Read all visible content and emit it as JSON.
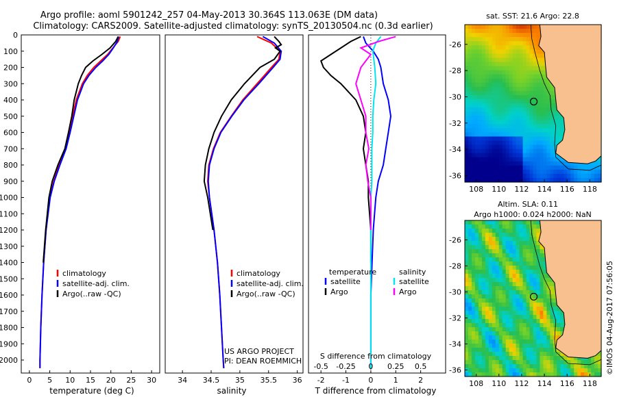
{
  "title": {
    "line1": "Argo profile: aoml 5901242_257 04-May-2013 30.364S 113.063E (DM data)",
    "line2": "Climatology: CARS2009. Satellite-adjusted climatology: synTS_20130504.nc (0.3d earlier)"
  },
  "colors": {
    "climatology": "#ff0000",
    "satellite": "#0000ff",
    "argo": "#000000",
    "sat_s": "#00e5ee",
    "argo_s": "#ff00ff",
    "land": "#f8c08f"
  },
  "chart_data": [
    {
      "type": "line",
      "name": "temperature-profile",
      "xlabel": "temperature (deg C)",
      "xlim": [
        -2,
        32
      ],
      "ylim": [
        2080,
        0
      ],
      "xticks": [
        0,
        5,
        10,
        15,
        20,
        25,
        30
      ],
      "yticks": [
        0,
        100,
        200,
        300,
        400,
        500,
        600,
        700,
        800,
        900,
        1000,
        1100,
        1200,
        1300,
        1400,
        1500,
        1600,
        1700,
        1800,
        1900,
        2000
      ],
      "legend": [
        "climatology",
        "satellite-adj. clim.",
        "Argo(..raw -QC)"
      ],
      "series": [
        {
          "name": "climatology",
          "depth": [
            10,
            40,
            80,
            120,
            160,
            200,
            250,
            300,
            400,
            500,
            600,
            700,
            800,
            900,
            1000,
            1200,
            1400,
            1600,
            1800,
            2000,
            2050
          ],
          "values": [
            22.3,
            21.8,
            20.5,
            19.2,
            17.5,
            15.8,
            14.2,
            13.0,
            11.5,
            10.6,
            9.8,
            8.8,
            7.3,
            6.0,
            5.0,
            4.1,
            3.5,
            3.1,
            2.8,
            2.6,
            2.6
          ]
        },
        {
          "name": "satellite-adj. clim.",
          "depth": [
            10,
            40,
            80,
            120,
            160,
            200,
            250,
            300,
            400,
            500,
            600,
            700,
            800,
            900,
            1000,
            1200,
            1400,
            1600,
            1800,
            2000,
            2050
          ],
          "values": [
            21.9,
            21.6,
            20.6,
            19.5,
            18.0,
            16.3,
            14.6,
            13.3,
            11.8,
            10.9,
            10.0,
            9.0,
            7.5,
            6.1,
            5.1,
            4.1,
            3.5,
            3.1,
            2.8,
            2.6,
            2.6
          ]
        },
        {
          "name": "Argo(..raw -QC)",
          "depth": [
            10,
            40,
            80,
            120,
            160,
            200,
            250,
            300,
            400,
            500,
            600,
            700,
            800,
            900,
            1000,
            1200,
            1400
          ],
          "values": [
            21.8,
            21.2,
            19.8,
            17.8,
            15.6,
            13.8,
            12.8,
            12.0,
            11.0,
            10.4,
            9.6,
            8.7,
            7.0,
            5.6,
            4.8,
            4.0,
            3.4
          ]
        }
      ]
    },
    {
      "type": "line",
      "name": "salinity-profile",
      "xlabel": "salinity",
      "xlim": [
        33.7,
        36.1
      ],
      "ylim": [
        2080,
        0
      ],
      "xticks": [
        34,
        34.5,
        35,
        35.5,
        36
      ],
      "legend": [
        "climatology",
        "satellite-adj. clim.",
        "Argo(..raw -QC)"
      ],
      "annotation": [
        "US ARGO PROJECT",
        "PI: DEAN ROEMMICH"
      ],
      "series": [
        {
          "name": "climatology",
          "depth": [
            10,
            50,
            100,
            150,
            200,
            300,
            400,
            500,
            600,
            700,
            800,
            900,
            1000,
            1200,
            1400,
            1600,
            1800,
            2000,
            2050
          ],
          "values": [
            35.3,
            35.55,
            35.7,
            35.68,
            35.55,
            35.3,
            35.05,
            34.85,
            34.66,
            34.54,
            34.46,
            34.44,
            34.47,
            34.55,
            34.61,
            34.65,
            34.68,
            34.71,
            34.72
          ]
        },
        {
          "name": "satellite-adj. clim.",
          "depth": [
            10,
            50,
            100,
            150,
            200,
            300,
            400,
            500,
            600,
            700,
            800,
            900,
            1000,
            1200,
            1400,
            1600,
            1800,
            2000,
            2050
          ],
          "values": [
            35.4,
            35.6,
            35.72,
            35.7,
            35.58,
            35.33,
            35.07,
            34.86,
            34.67,
            34.55,
            34.47,
            34.45,
            34.47,
            34.55,
            34.61,
            34.65,
            34.68,
            34.71,
            34.72
          ]
        },
        {
          "name": "Argo(..raw -QC)",
          "depth": [
            10,
            40,
            60,
            80,
            100,
            150,
            200,
            300,
            400,
            500,
            600,
            700,
            800,
            900,
            1000,
            1200
          ],
          "values": [
            35.6,
            35.68,
            35.72,
            35.62,
            35.7,
            35.6,
            35.35,
            35.08,
            34.85,
            34.68,
            34.55,
            34.46,
            34.4,
            34.38,
            34.44,
            34.53
          ]
        }
      ]
    },
    {
      "type": "line",
      "name": "difference-from-climatology",
      "xlabel": "T difference from climatology",
      "xlabel_top": "S difference from climatology",
      "xlim": [
        -2.5,
        3
      ],
      "ylim": [
        2080,
        0
      ],
      "xticks": [
        -2,
        -1,
        0,
        1,
        2
      ],
      "xticks_top": [
        -0.5,
        -0.25,
        0,
        0.25,
        0.5
      ],
      "legend_titles": [
        "temperature",
        "salinity"
      ],
      "legend": [
        "satellite",
        "Argo",
        "satellite",
        "Argo"
      ],
      "series": [
        {
          "name": "satellite",
          "axis": "T",
          "depth": [
            10,
            50,
            100,
            150,
            200,
            300,
            400,
            500,
            600,
            700,
            800,
            900,
            1000,
            1200,
            1400,
            1600,
            1800,
            2000,
            2050
          ],
          "values": [
            -0.3,
            -0.2,
            0.1,
            0.3,
            0.4,
            0.5,
            0.7,
            0.8,
            0.7,
            0.6,
            0.5,
            0.3,
            0.2,
            0.1,
            0.05,
            0,
            0,
            0,
            0
          ]
        },
        {
          "name": "Argo",
          "axis": "T",
          "depth": [
            10,
            40,
            80,
            120,
            160,
            200,
            250,
            300,
            400,
            500,
            600,
            700,
            800,
            900,
            1000,
            1200,
            1400
          ],
          "values": [
            -0.4,
            -0.8,
            -1.2,
            -1.6,
            -2.0,
            -1.9,
            -1.6,
            -1.2,
            -0.6,
            -0.3,
            -0.2,
            -0.3,
            -0.2,
            -0.1,
            -0.1,
            0,
            0
          ]
        },
        {
          "name": "satellite",
          "axis": "S",
          "depth": [
            10,
            50,
            100,
            150,
            200,
            300,
            400,
            500,
            600,
            700,
            800,
            900,
            1000,
            1200,
            1400,
            1600,
            1800,
            2000,
            2050
          ],
          "values": [
            0.1,
            0.05,
            0.02,
            0.03,
            0.04,
            0.05,
            0.03,
            0.02,
            0.02,
            0.01,
            0.01,
            0.01,
            0,
            0,
            0,
            0,
            0,
            0,
            0
          ]
        },
        {
          "name": "Argo",
          "axis": "S",
          "depth": [
            10,
            40,
            80,
            120,
            160,
            200,
            300,
            400,
            500,
            600,
            700,
            800,
            900,
            1000,
            1100,
            1200
          ],
          "values": [
            0.25,
            0.08,
            -0.1,
            0.0,
            -0.05,
            -0.1,
            -0.15,
            -0.1,
            -0.05,
            -0.05,
            -0.02,
            -0.05,
            -0.03,
            0,
            0,
            0
          ]
        }
      ]
    },
    {
      "type": "heatmap",
      "name": "sst-map",
      "title": "sat. SST: 21.6 Argo: 22.8",
      "xticks": [
        108,
        110,
        112,
        114,
        116,
        118
      ],
      "yticks": [
        -26,
        -28,
        -30,
        -32,
        -34,
        -36
      ],
      "xlim": [
        107,
        119
      ],
      "ylim": [
        -36.5,
        -24.5
      ],
      "marker": {
        "lon": 113.063,
        "lat": -30.364
      }
    },
    {
      "type": "heatmap",
      "name": "sla-map",
      "title": [
        "Altim. SLA: 0.11",
        "Argo h1000: 0.024 h2000: NaN"
      ],
      "xticks": [
        108,
        110,
        112,
        114,
        116,
        118
      ],
      "yticks": [
        -26,
        -28,
        -30,
        -32,
        -34,
        -36
      ],
      "xlim": [
        107,
        119
      ],
      "ylim": [
        -36.5,
        -24.5
      ],
      "marker": {
        "lon": 113.063,
        "lat": -30.364
      }
    }
  ],
  "credit": "©IMOS 04-Aug-2017 07:56:05"
}
